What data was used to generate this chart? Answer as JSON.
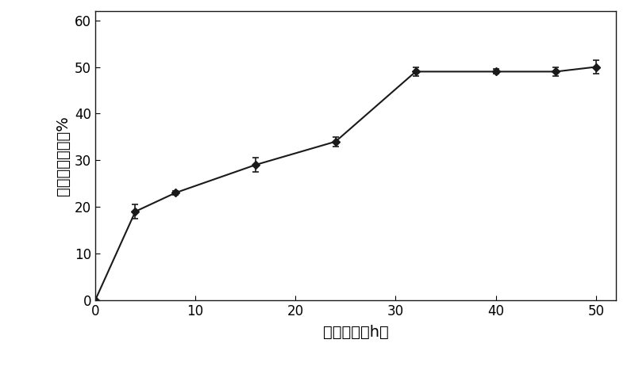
{
  "x": [
    0,
    4,
    8,
    16,
    24,
    32,
    40,
    46,
    50
  ],
  "y": [
    0,
    19,
    23,
    29,
    34,
    49,
    49,
    49,
    50
  ],
  "yerr": [
    0,
    1.5,
    0.5,
    1.5,
    1.0,
    1.0,
    0.5,
    1.0,
    1.5
  ],
  "xlabel": "反应时间（h）",
  "ylabel": "生物柴油转化率%",
  "xlim": [
    0,
    52
  ],
  "ylim": [
    0,
    62
  ],
  "xticks": [
    0,
    10,
    20,
    30,
    40,
    50
  ],
  "yticks": [
    0,
    10,
    20,
    30,
    40,
    50,
    60
  ],
  "line_color": "#1a1a1a",
  "marker_color": "#1a1a1a",
  "background_color": "#ffffff",
  "label_fontsize": 14,
  "tick_fontsize": 12
}
